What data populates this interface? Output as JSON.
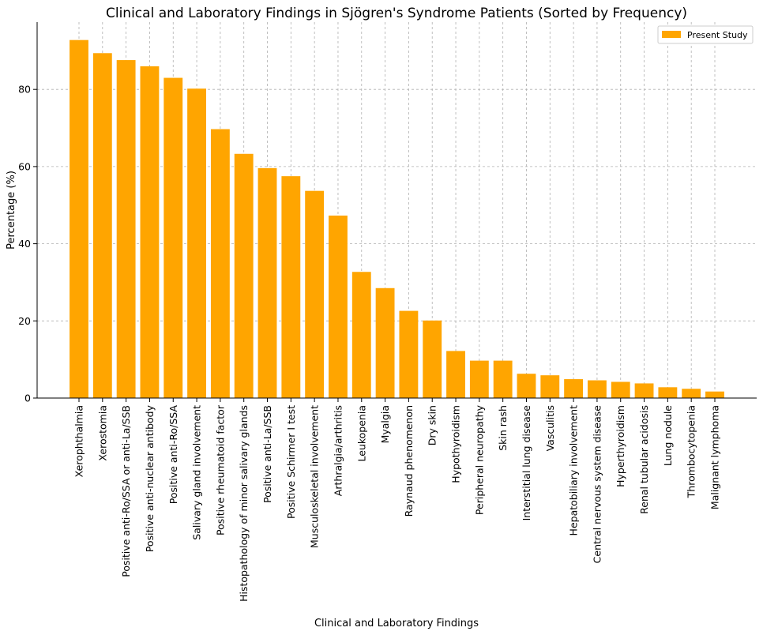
{
  "chart_data": {
    "type": "bar",
    "title": "Clinical and Laboratory Findings in Sjögren's Syndrome Patients (Sorted by Frequency)",
    "xlabel": "Clinical and Laboratory Findings",
    "ylabel": "Percentage (%)",
    "ylim": [
      0,
      98
    ],
    "yticks": [
      0,
      20,
      40,
      60,
      80
    ],
    "grid": true,
    "legend_position": "top-right",
    "bar_color": "#FFA500",
    "grid_color": "#b0b0b0",
    "series": [
      {
        "name": "Present Study",
        "values": [
          92.8,
          89.4,
          87.6,
          86.0,
          83.0,
          80.2,
          69.7,
          63.3,
          59.6,
          57.5,
          53.7,
          47.3,
          32.7,
          28.5,
          22.6,
          20.1,
          12.2,
          9.7,
          9.7,
          6.3,
          5.9,
          4.9,
          4.6,
          4.2,
          3.8,
          2.8,
          2.4,
          1.7
        ]
      }
    ],
    "categories": [
      "Xerophthalmia",
      "Xerostomia",
      "Positive anti-Ro/SSA or anti-La/SSB",
      "Positive anti-nuclear antibody",
      "Positive anti-Ro/SSA",
      "Salivary gland involvement",
      "Positive rheumatoid factor",
      "Histopathology of minor salivary glands",
      "Positive anti-La/SSB",
      "Positive Schirmer I test",
      "Musculoskeletal involvement",
      "Arthralgia/arthritis",
      "Leukopenia",
      "Myalgia",
      "Raynaud phenomenon",
      "Dry skin",
      "Hypothyroidism",
      "Peripheral neuropathy",
      "Skin rash",
      "Interstitial lung disease",
      "Vasculitis",
      "Hepatobiliary involvement",
      "Central nervous system disease",
      "Hyperthyroidism",
      "Renal tubular acidosis",
      "Lung nodule",
      "Thrombocytopenia",
      "Malignant lymphoma"
    ]
  }
}
